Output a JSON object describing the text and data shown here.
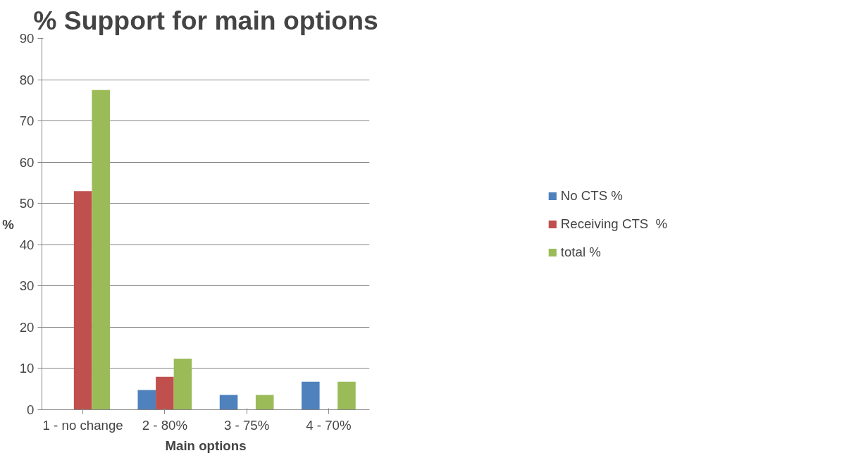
{
  "chart_data": {
    "type": "bar",
    "title": "% Support for main options",
    "xlabel": "Main options",
    "ylabel": "%",
    "categories": [
      "1 - no change",
      "2 - 80%",
      "3 - 75%",
      "4 - 70%"
    ],
    "series": [
      {
        "name": "No CTS %",
        "color": "#4f81bd",
        "values": [
          0,
          4.8,
          3.6,
          6.8
        ]
      },
      {
        "name": "Receiving CTS  %",
        "color": "#c0504d",
        "values": [
          53,
          8,
          0,
          0
        ]
      },
      {
        "name": "total %",
        "color": "#9bbb59",
        "values": [
          77.5,
          12.4,
          3.6,
          6.8
        ]
      }
    ],
    "ylim": [
      0,
      90
    ],
    "yticks": [
      0,
      10,
      20,
      30,
      40,
      50,
      60,
      70,
      80,
      90
    ],
    "grid": "y",
    "legend": "right"
  }
}
